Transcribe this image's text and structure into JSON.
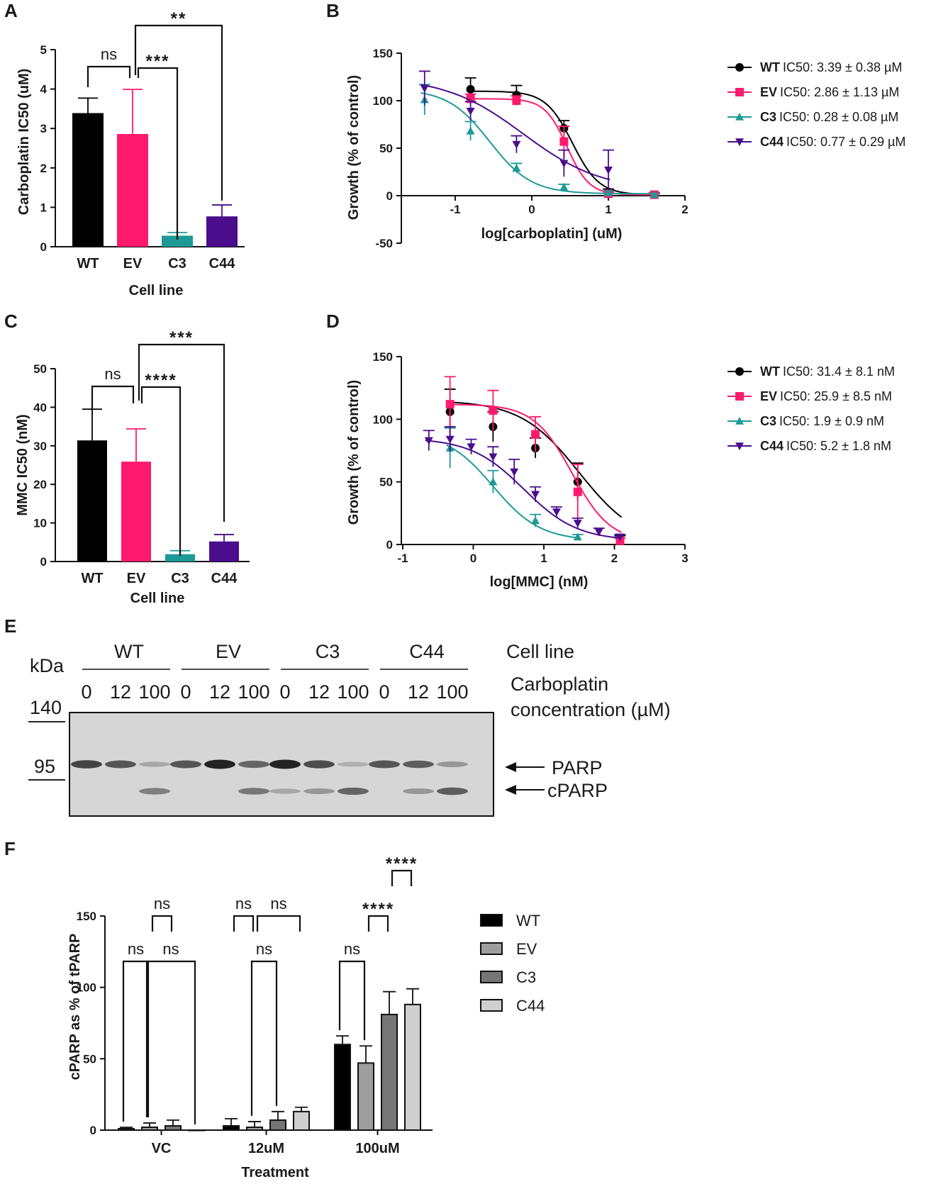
{
  "chart_data": [
    {
      "id": "A",
      "panel_label": "A",
      "type": "bar",
      "title": "",
      "xlabel": "Cell line",
      "ylabel": "Carboplatin IC50 (uM)",
      "ylim": [
        0,
        5
      ],
      "yticks": [
        "0",
        "1",
        "2",
        "3",
        "4",
        "5"
      ],
      "categories": [
        "WT",
        "EV",
        "C3",
        "C44"
      ],
      "values": [
        3.39,
        2.86,
        0.28,
        0.77
      ],
      "errors": [
        0.38,
        1.13,
        0.08,
        0.29
      ],
      "colors": [
        "#000000",
        "#ff1a6e",
        "#1d9a96",
        "#4a0d8c"
      ],
      "significance": [
        {
          "from": "WT",
          "to": "EV",
          "label": "ns"
        },
        {
          "from": "EV",
          "to": "C3",
          "label": "***"
        },
        {
          "from": "EV",
          "to": "C44",
          "label": "**"
        }
      ]
    },
    {
      "id": "B",
      "panel_label": "B",
      "type": "line",
      "xlabel": "log[carboplatin] (uM)",
      "ylabel": "Growth (% of control)",
      "xlim": [
        -1.5,
        2
      ],
      "ylim": [
        -50,
        150
      ],
      "xticks": [
        "-1",
        "0",
        "1",
        "2"
      ],
      "yticks": [
        "-50",
        "0",
        "50",
        "100",
        "150"
      ],
      "series": [
        {
          "name": "WT",
          "legend_label": "WT",
          "legend_value": "IC50: 3.39 ± 0.38 µM",
          "color": "#000000",
          "marker": "circle",
          "ic50_log": 0.53,
          "top": 110,
          "bottom": 1,
          "hill": 2.5,
          "x": [
            -0.8,
            -0.2,
            0.42,
            1.0,
            1.6
          ],
          "y": [
            112,
            106,
            71,
            4,
            1
          ],
          "err": [
            12,
            10,
            8,
            3,
            2
          ]
        },
        {
          "name": "EV",
          "legend_label": "EV",
          "legend_value": "IC50: 2.86 ± 1.13 µM",
          "color": "#ff1a6e",
          "marker": "square",
          "ic50_log": 0.46,
          "top": 102,
          "bottom": 1,
          "hill": 3,
          "x": [
            -0.8,
            -0.2,
            0.42,
            1.0,
            1.6
          ],
          "y": [
            102,
            100,
            57,
            2,
            1
          ],
          "err": [
            5,
            5,
            16,
            2,
            2
          ]
        },
        {
          "name": "C3",
          "legend_label": "C3",
          "legend_value": "IC50: 0.28 ± 0.08 µM",
          "color": "#1d9a96",
          "marker": "triangle-up",
          "ic50_log": -0.55,
          "top": 112,
          "bottom": 2,
          "hill": 1.6,
          "x": [
            -1.4,
            -0.8,
            -0.2,
            0.42,
            1.0,
            1.6
          ],
          "y": [
            101,
            68,
            29,
            9,
            3,
            1
          ],
          "err": [
            16,
            10,
            5,
            3,
            2,
            1
          ]
        },
        {
          "name": "C44",
          "legend_label": "C44",
          "legend_value": "IC50: 0.77 ± 0.29 µM",
          "color": "#4a0d8c",
          "marker": "triangle-down",
          "ic50_log": -0.11,
          "top": 125,
          "bottom": 5,
          "hill": 0.85,
          "x": [
            -1.4,
            -0.8,
            -0.2,
            0.42,
            1.0
          ],
          "y": [
            113,
            89,
            54,
            34,
            27
          ],
          "err": [
            18,
            10,
            9,
            14,
            21
          ]
        }
      ]
    },
    {
      "id": "C",
      "panel_label": "C",
      "type": "bar",
      "xlabel": "Cell line",
      "ylabel": "MMC IC50 (nM)",
      "ylim": [
        0,
        50
      ],
      "yticks": [
        "0",
        "10",
        "20",
        "30",
        "40",
        "50"
      ],
      "categories": [
        "WT",
        "EV",
        "C3",
        "C44"
      ],
      "values": [
        31.4,
        25.9,
        1.9,
        5.2
      ],
      "errors": [
        8.1,
        8.5,
        0.9,
        1.8
      ],
      "colors": [
        "#000000",
        "#ff1a6e",
        "#1d9a96",
        "#4a0d8c"
      ],
      "significance": [
        {
          "from": "WT",
          "to": "EV",
          "label": "ns"
        },
        {
          "from": "EV",
          "to": "C3",
          "label": "****"
        },
        {
          "from": "EV",
          "to": "C44",
          "label": "***"
        }
      ]
    },
    {
      "id": "D",
      "panel_label": "D",
      "type": "line",
      "xlabel": "log[MMC] (nM)",
      "ylabel": "Growth (% of control)",
      "xlim": [
        -1,
        3
      ],
      "ylim": [
        0,
        150
      ],
      "xticks": [
        "-1",
        "0",
        "1",
        "2",
        "3"
      ],
      "yticks": [
        "0",
        "50",
        "100",
        "150"
      ],
      "series": [
        {
          "name": "WT",
          "legend_label": "WT",
          "legend_value": "IC50: 31.4 ± 8.1 nM",
          "color": "#000000",
          "marker": "circle",
          "ic50_log": 1.5,
          "top": 115,
          "bottom": 0,
          "hill": 1.05,
          "x": [
            -0.33,
            0.28,
            0.88,
            1.48,
            2.08
          ],
          "y": [
            106,
            94,
            77,
            50,
            4
          ],
          "err": [
            18,
            12,
            8,
            15,
            3
          ]
        },
        {
          "name": "EV",
          "legend_label": "EV",
          "legend_value": "IC50: 25.9 ± 8.5 nM",
          "color": "#ff1a6e",
          "marker": "square",
          "ic50_log": 1.4,
          "top": 112,
          "bottom": 2,
          "hill": 1.6,
          "x": [
            -0.33,
            0.28,
            0.88,
            1.48,
            2.08
          ],
          "y": [
            112,
            107,
            88,
            42,
            3
          ],
          "err": [
            22,
            16,
            14,
            22,
            2
          ]
        },
        {
          "name": "C3",
          "legend_label": "C3",
          "legend_value": "IC50: 1.9 ± 0.9 nM",
          "color": "#1d9a96",
          "marker": "triangle-up",
          "ic50_log": 0.28,
          "top": 90,
          "bottom": 3,
          "hill": 1.3,
          "x": [
            -0.33,
            0.28,
            0.88,
            1.48
          ],
          "y": [
            77,
            50,
            19,
            6
          ],
          "err": [
            16,
            9,
            5,
            2
          ]
        },
        {
          "name": "C44",
          "legend_label": "C44",
          "legend_value": "IC50: 5.2 ± 1.8 nM",
          "color": "#4a0d8c",
          "marker": "triangle-down",
          "ic50_log": 0.72,
          "top": 85,
          "bottom": 3,
          "hill": 1.15,
          "x": [
            -0.63,
            -0.33,
            -0.03,
            0.28,
            0.58,
            0.88,
            1.18,
            1.48,
            1.78,
            2.08
          ],
          "y": [
            83,
            84,
            78,
            70,
            58,
            40,
            26,
            17,
            10,
            6
          ],
          "err": [
            8,
            10,
            6,
            8,
            10,
            6,
            4,
            4,
            3,
            2
          ]
        }
      ]
    },
    {
      "id": "F",
      "panel_label": "F",
      "type": "bar",
      "xlabel": "Treatment",
      "ylabel": "cPARP as % of tPARP",
      "ylim": [
        0,
        150
      ],
      "yticks": [
        "0",
        "50",
        "100",
        "150"
      ],
      "categories": [
        "VC",
        "12uM",
        "100uM"
      ],
      "series": [
        {
          "name": "WT",
          "color": "#000000",
          "values": [
            1,
            3,
            60
          ],
          "errors": [
            1,
            5,
            6
          ]
        },
        {
          "name": "EV",
          "color": "#9e9e9e",
          "values": [
            2,
            2,
            47
          ],
          "errors": [
            3,
            4,
            12
          ]
        },
        {
          "name": "C3",
          "color": "#767676",
          "values": [
            3,
            7,
            81
          ],
          "errors": [
            4,
            6,
            16
          ]
        },
        {
          "name": "C44",
          "color": "#cfcfcf",
          "values": [
            0,
            13,
            88
          ],
          "errors": [
            0,
            3,
            11
          ]
        }
      ],
      "significance": [
        {
          "group": "VC",
          "from": "WT",
          "to": "EV",
          "label": "ns",
          "level": 1
        },
        {
          "group": "VC",
          "from": "EV",
          "to": "C3",
          "label": "ns",
          "level": 2
        },
        {
          "group": "VC",
          "from": "EV",
          "to": "C44",
          "label": "ns",
          "level": 1
        },
        {
          "group": "12uM",
          "from": "WT",
          "to": "EV",
          "label": "ns",
          "level": 2
        },
        {
          "group": "12uM",
          "from": "EV",
          "to": "C3",
          "label": "ns",
          "level": 1
        },
        {
          "group": "12uM",
          "from": "EV",
          "to": "C44",
          "label": "ns",
          "level": 2
        },
        {
          "group": "100uM",
          "from": "WT",
          "to": "EV",
          "label": "ns",
          "level": 1
        },
        {
          "group": "100uM",
          "from": "EV",
          "to": "C3",
          "label": "****",
          "level": 2
        },
        {
          "group": "100uM",
          "from": "C3",
          "to": "C44",
          "label": "****",
          "level": 3
        }
      ]
    }
  ],
  "blot": {
    "panel_label": "E",
    "kda_label": "kDa",
    "markers": [
      "140",
      "95"
    ],
    "cell_line_header": "Cell line",
    "groups": [
      "WT",
      "EV",
      "C3",
      "C44"
    ],
    "concentrations": [
      "0",
      "12",
      "100"
    ],
    "concentration_header_1": "Carboplatin",
    "concentration_header_2": "concentration (µM)",
    "bands": [
      {
        "label": "PARP",
        "intensities": [
          0.8,
          0.7,
          0.2,
          0.7,
          1.0,
          0.6,
          1.0,
          0.75,
          0.15,
          0.7,
          0.65,
          0.3
        ]
      },
      {
        "label": "cPARP",
        "intensities": [
          0.0,
          0.0,
          0.45,
          0.0,
          0.0,
          0.5,
          0.2,
          0.3,
          0.6,
          0.0,
          0.3,
          0.65
        ]
      }
    ]
  }
}
